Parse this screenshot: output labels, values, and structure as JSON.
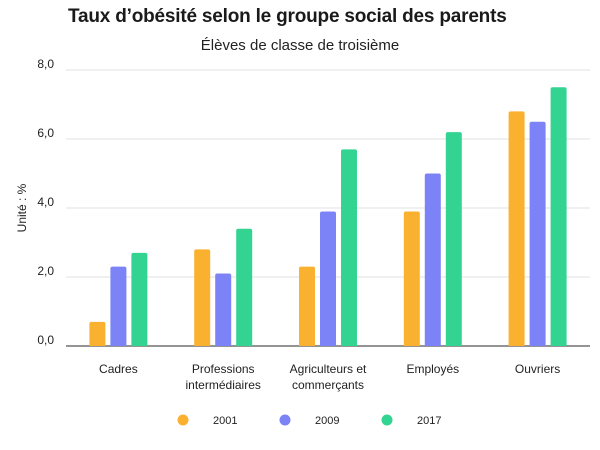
{
  "chart_data": {
    "type": "bar",
    "title": "Taux d’obésité selon le groupe social des parents",
    "subtitle": "Élèves de classe de troisième",
    "ylabel": "Unité : %",
    "xlabel": "",
    "ylim": [
      0,
      8
    ],
    "yticks": [
      "0,0",
      "2,0",
      "4,0",
      "6,0",
      "8,0"
    ],
    "ytick_values": [
      0,
      2,
      4,
      6,
      8
    ],
    "categories": [
      [
        "Cadres"
      ],
      [
        "Professions",
        "intermédiaires"
      ],
      [
        "Agriculteurs et",
        "commerçants"
      ],
      [
        "Employés"
      ],
      [
        "Ouvriers"
      ]
    ],
    "series": [
      {
        "name": "2001",
        "color": "#fbb130",
        "values": [
          0.7,
          2.8,
          2.3,
          3.9,
          6.8
        ]
      },
      {
        "name": "2009",
        "color": "#7c83f6",
        "values": [
          2.3,
          2.1,
          3.9,
          5.0,
          6.5
        ]
      },
      {
        "name": "2017",
        "color": "#33d491",
        "values": [
          2.7,
          3.4,
          5.7,
          6.2,
          7.5
        ]
      }
    ],
    "grid": true,
    "legend_position": "bottom"
  }
}
